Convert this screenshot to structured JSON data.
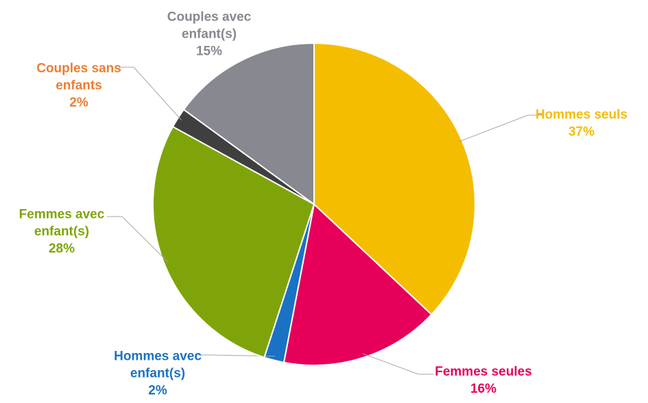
{
  "chart_data": {
    "type": "pie",
    "categories": [
      "Hommes seuls",
      "Femmes seules",
      "Hommes avec enfant(s)",
      "Femmes avec enfant(s)",
      "Couples sans enfants",
      "Couples avec enfant(s)"
    ],
    "values": [
      37,
      16,
      2,
      28,
      2,
      15
    ],
    "value_labels": [
      "37%",
      "16%",
      "2%",
      "28%",
      "2%",
      "15%"
    ],
    "colors": [
      "#f5bd00",
      "#e6005a",
      "#1a72c4",
      "#7fa40a",
      "#3f3f3f",
      "#878890"
    ],
    "label_colors": [
      "#f5bd00",
      "#e6005a",
      "#1a72c4",
      "#7fa40a",
      "#ed7d31",
      "#878890"
    ]
  }
}
